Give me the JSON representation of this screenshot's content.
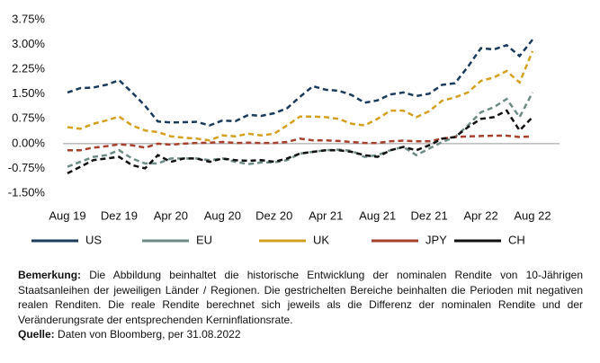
{
  "chart_data": {
    "type": "line",
    "categories": [
      "Aug 19",
      null,
      null,
      null,
      "Dez 19",
      null,
      null,
      null,
      "Apr 20",
      null,
      null,
      null,
      "Aug 20",
      null,
      null,
      null,
      "Dez 20",
      null,
      null,
      null,
      "Apr 21",
      null,
      null,
      null,
      "Aug 21",
      null,
      null,
      null,
      "Dez 21",
      null,
      null,
      null,
      "Apr 22",
      null,
      null,
      null,
      "Aug 22"
    ],
    "series": [
      {
        "name": "US",
        "color": "#1b3a5c",
        "values": [
          1.55,
          1.68,
          1.7,
          1.78,
          1.92,
          1.55,
          1.15,
          0.67,
          0.64,
          0.65,
          0.66,
          0.55,
          0.7,
          0.68,
          0.87,
          0.84,
          0.92,
          1.07,
          1.42,
          1.74,
          1.63,
          1.6,
          1.47,
          1.24,
          1.31,
          1.49,
          1.55,
          1.44,
          1.51,
          1.78,
          1.83,
          2.33,
          2.89,
          2.85,
          2.98,
          2.65,
          3.15
        ]
      },
      {
        "name": "EU",
        "color": "#6e8a86",
        "values": [
          -0.7,
          -0.55,
          -0.4,
          -0.35,
          -0.2,
          -0.45,
          -0.6,
          -0.6,
          -0.45,
          -0.45,
          -0.45,
          -0.5,
          -0.45,
          -0.55,
          -0.62,
          -0.57,
          -0.57,
          -0.5,
          -0.3,
          -0.25,
          -0.2,
          -0.18,
          -0.22,
          -0.4,
          -0.35,
          -0.2,
          -0.1,
          -0.35,
          -0.15,
          0.05,
          0.2,
          0.55,
          0.95,
          1.1,
          1.35,
          0.8,
          1.55
        ]
      },
      {
        "name": "UK",
        "color": "#d4a020",
        "values": [
          0.5,
          0.45,
          0.6,
          0.7,
          0.82,
          0.55,
          0.4,
          0.35,
          0.22,
          0.18,
          0.15,
          0.1,
          0.25,
          0.22,
          0.3,
          0.25,
          0.3,
          0.55,
          0.82,
          0.82,
          0.8,
          0.75,
          0.6,
          0.55,
          0.75,
          1.0,
          1.0,
          0.8,
          0.98,
          1.3,
          1.4,
          1.55,
          1.9,
          2.0,
          2.2,
          1.85,
          2.8
        ]
      },
      {
        "name": "JPY",
        "color": "#a8402e",
        "values": [
          -0.2,
          -0.2,
          -0.12,
          -0.08,
          -0.02,
          -0.05,
          -0.12,
          0.0,
          -0.03,
          0.0,
          0.02,
          0.03,
          0.05,
          0.02,
          0.03,
          0.02,
          0.02,
          0.05,
          0.15,
          0.1,
          0.1,
          0.08,
          0.05,
          0.02,
          0.02,
          0.07,
          0.09,
          0.07,
          0.07,
          0.15,
          0.2,
          0.22,
          0.23,
          0.24,
          0.24,
          0.2,
          0.22
        ]
      },
      {
        "name": "CH",
        "color": "#111111",
        "values": [
          -0.9,
          -0.7,
          -0.5,
          -0.45,
          -0.4,
          -0.65,
          -0.75,
          -0.35,
          -0.55,
          -0.45,
          -0.45,
          -0.55,
          -0.45,
          -0.5,
          -0.52,
          -0.5,
          -0.55,
          -0.45,
          -0.3,
          -0.25,
          -0.2,
          -0.2,
          -0.25,
          -0.35,
          -0.4,
          -0.2,
          -0.1,
          -0.2,
          -0.05,
          0.15,
          0.2,
          0.5,
          0.75,
          0.8,
          1.0,
          0.4,
          0.8
        ]
      }
    ],
    "ylim": [
      -1.5,
      3.75
    ],
    "yticks": [
      {
        "value": -1.5,
        "label": "-1.50%"
      },
      {
        "value": -0.75,
        "label": "-0.75%"
      },
      {
        "value": 0,
        "label": "0.00%"
      },
      {
        "value": 0.75,
        "label": "0.75%"
      },
      {
        "value": 1.5,
        "label": "1.50%"
      },
      {
        "value": 2.25,
        "label": "2.25%"
      },
      {
        "value": 3,
        "label": "3.00%"
      },
      {
        "value": 3.75,
        "label": "3.75%"
      }
    ],
    "grid": false,
    "legend": "bottom"
  },
  "note": {
    "label": "Bemerkung:",
    "text": "Die Abbildung beinhaltet die historische Entwicklung der nominalen Rendite von 10-Jährigen Staatsanleihen der jeweiligen Länder / Regionen. Die gestrichelten Bereiche beinhalten die Perioden mit negativen realen Renditen. Die reale Rendite berechnet sich jeweils als die Differenz der nominalen Rendite und der Veränderungsrate der entsprechenden Kerninflationsrate."
  },
  "source": {
    "label": "Quelle:",
    "text": "Daten von Bloomberg, per 31.08.2022"
  }
}
